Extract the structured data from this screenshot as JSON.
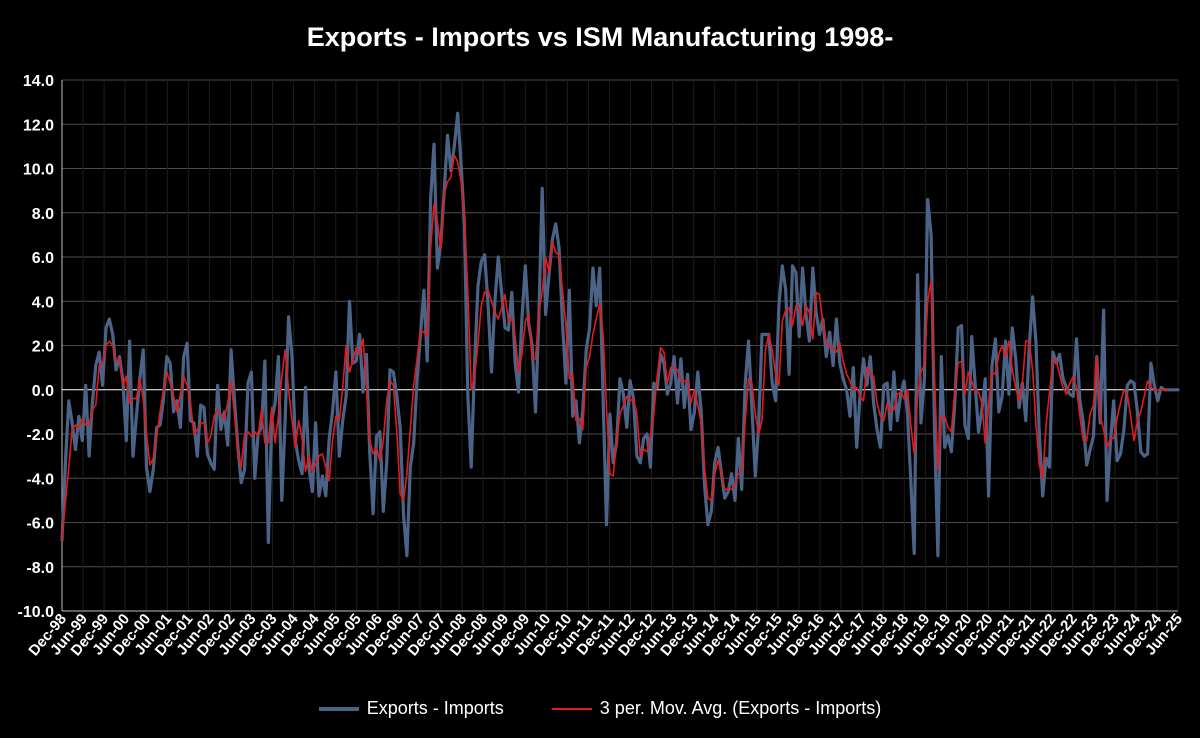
{
  "chart_data": {
    "type": "line",
    "title": "Exports - Imports vs ISM Manufacturing 1998-",
    "xlabel": "",
    "ylabel": "",
    "ylim": [
      -10,
      14
    ],
    "y_ticks": [
      "14.0",
      "12.0",
      "10.0",
      "8.0",
      "6.0",
      "4.0",
      "2.0",
      "0.0",
      "-2.0",
      "-4.0",
      "-6.0",
      "-8.0",
      "-10.0"
    ],
    "x_tick_labels": [
      "Dec-98",
      "Jun-99",
      "Dec-99",
      "Jun-00",
      "Dec-00",
      "Jun-01",
      "Dec-01",
      "Jun-02",
      "Dec-02",
      "Jun-03",
      "Dec-03",
      "Jun-04",
      "Dec-04",
      "Jun-05",
      "Dec-05",
      "Jun-06",
      "Dec-06",
      "Jun-07",
      "Dec-07",
      "Jun-08",
      "Dec-08",
      "Jun-09",
      "Dec-09",
      "Jun-10",
      "Dec-10",
      "Jun-11",
      "Dec-11",
      "Jun-12",
      "Dec-12",
      "Jun-13",
      "Dec-13",
      "Jun-14",
      "Dec-14",
      "Jun-15",
      "Dec-15",
      "Jun-16",
      "Dec-16",
      "Jun-17",
      "Dec-17",
      "Jun-18",
      "Dec-18",
      "Jun-19",
      "Dec-19",
      "Jun-20",
      "Dec-20",
      "Jun-21",
      "Dec-21",
      "Jun-22",
      "Dec-22",
      "Jun-23",
      "Dec-23",
      "Jun-24",
      "Dec-24",
      "Jun-25"
    ],
    "colors": {
      "raw": "#4a6386",
      "avg": "#e41a1c",
      "grid": "#4d4d4d",
      "zero": "#ffffff"
    },
    "series": [
      {
        "name": "Exports - Imports",
        "key": "raw",
        "values": [
          -6.8,
          -3.3,
          -0.5,
          -1.5,
          -2.7,
          -1.2,
          -2.3,
          0.2,
          -3.0,
          -0.6,
          1.1,
          1.7,
          0.2,
          2.8,
          3.2,
          2.5,
          0.9,
          1.5,
          0.4,
          -2.3,
          2.2,
          -3.0,
          -1.2,
          0.5,
          1.8,
          -3.5,
          -4.6,
          -3.6,
          -1.7,
          -1.6,
          -0.4,
          1.5,
          1.2,
          -1.0,
          -0.5,
          -1.7,
          1.5,
          2.1,
          -1.4,
          -1.5,
          -3.0,
          -0.7,
          -0.8,
          -2.9,
          -3.3,
          -3.6,
          0.2,
          -1.8,
          -1.0,
          -2.5,
          1.8,
          -0.5,
          -2.6,
          -4.2,
          -3.6,
          0.3,
          0.8,
          -4.0,
          -2.0,
          -1.7,
          1.3,
          -6.9,
          -1.4,
          -0.6,
          1.5,
          -5.0,
          -1.3,
          3.3,
          1.5,
          -2.3,
          -3.2,
          -3.8,
          0.1,
          -3.5,
          -4.6,
          -1.5,
          -4.8,
          -3.9,
          -4.8,
          -2.2,
          -1.0,
          0.8,
          -3.0,
          -1.4,
          -0.3,
          4.0,
          1.2,
          1.3,
          2.5,
          -0.1,
          1.6,
          -2.8,
          -5.6,
          -2.1,
          -1.9,
          -5.5,
          -3.3,
          0.9,
          0.8,
          -0.3,
          -1.7,
          -5.7,
          -7.5,
          -3.5,
          -2.4,
          0.5,
          2.5,
          4.5,
          1.3,
          8.6,
          11.1,
          5.5,
          6.6,
          8.9,
          11.5,
          9.9,
          11.0,
          12.5,
          10.2,
          7.5,
          -0.2,
          -3.5,
          1.2,
          4.7,
          5.8,
          6.1,
          3.8,
          0.8,
          4.0,
          6.0,
          4.4,
          2.8,
          2.7,
          4.4,
          1.2,
          -0.1,
          3.2,
          5.6,
          3.0,
          2.0,
          -1.0,
          3.2,
          9.1,
          3.4,
          5.2,
          6.8,
          7.5,
          6.4,
          3.0,
          0.3,
          4.5,
          -1.2,
          -0.5,
          -2.4,
          -0.9,
          1.8,
          2.8,
          5.5,
          3.8,
          5.5,
          -0.4,
          -6.1,
          -1.1,
          -3.3,
          -2.4,
          0.5,
          -0.2,
          -1.7,
          0.4,
          -0.4,
          -3.0,
          -3.3,
          -2.2,
          -2.0,
          -3.5,
          0.3,
          0.1,
          1.6,
          1.2,
          -0.2,
          0.3,
          1.5,
          -0.6,
          1.4,
          -0.8,
          0.7,
          -1.8,
          -1.0,
          0.8,
          -1.0,
          -4.3,
          -6.1,
          -5.5,
          -3.3,
          -2.6,
          -3.8,
          -4.9,
          -4.6,
          -3.8,
          -5.0,
          -2.2,
          -4.5,
          0.2,
          2.2,
          -0.8,
          -3.9,
          -1.6,
          2.5,
          2.5,
          2.5,
          0.3,
          -0.5,
          3.8,
          5.6,
          4.5,
          0.7,
          5.6,
          5.3,
          2.4,
          5.5,
          3.4,
          2.2,
          5.5,
          3.5,
          2.5,
          3.2,
          1.5,
          2.6,
          1.1,
          3.2,
          1.2,
          0.5,
          0.0,
          -1.2,
          1.0,
          -2.6,
          -0.2,
          1.4,
          0.2,
          1.5,
          -0.6,
          -1.8,
          -2.6,
          0.2,
          0.3,
          -1.8,
          0.8,
          -1.4,
          -0.2,
          0.4,
          -1.1,
          -4.1,
          -7.4,
          5.2,
          -1.5,
          0.5,
          8.6,
          7.0,
          -1.8,
          -7.5,
          1.5,
          -2.6,
          -2.1,
          -2.8,
          -0.6,
          2.8,
          2.9,
          -1.6,
          -2.2,
          2.4,
          0.3,
          -1.9,
          -0.9,
          0.5,
          -4.8,
          1.1,
          2.3,
          -1.0,
          -0.3,
          2.2,
          -0.2,
          2.8,
          1.4,
          -0.8,
          0.3,
          -1.4,
          1.9,
          4.2,
          2.1,
          -2.0,
          -4.8,
          -3.1,
          -3.5,
          1.7,
          1.2,
          1.6,
          0.5,
          0.1,
          -0.2,
          -0.3,
          2.3,
          -0.5,
          -1.5,
          -3.4,
          -2.7,
          -2.1,
          1.5,
          -1.5,
          3.6,
          -5.0,
          -2.4,
          -0.5,
          -3.2,
          -2.9,
          -1.8,
          0.2,
          0.4,
          0.3,
          -1.0,
          -2.8,
          -3.0,
          -2.9,
          1.2,
          0.2,
          -0.5,
          0.1,
          0.0,
          0.0,
          0.0,
          0.0,
          0.0
        ]
      },
      {
        "name": "3 per. Mov. Avg. (Exports - Imports)",
        "key": "avg",
        "values": [
          -6.8,
          -5.1,
          -3.5,
          -1.8,
          -1.6,
          -1.7,
          -1.3,
          -1.6,
          -1.6,
          -0.9,
          -0.7,
          1.1,
          1.2,
          2.0,
          2.2,
          2.0,
          1.3,
          1.4,
          0.2,
          0.6,
          -0.6,
          -0.4,
          -0.4,
          0.5,
          -0.4,
          -2.0,
          -3.4,
          -3.1,
          -2.1,
          -1.0,
          0.0,
          0.8,
          0.3,
          -0.3,
          -1.0,
          -0.2,
          0.6,
          0.2,
          -0.6,
          -2.0,
          -1.8,
          -1.5,
          -1.5,
          -2.4,
          -2.1,
          -1.2,
          -0.9,
          -1.1,
          -1.3,
          -0.6,
          0.4,
          -1.1,
          -2.8,
          -3.5,
          -2.0,
          -1.9,
          -2.1,
          -1.9,
          -2.1,
          -0.9,
          -2.4,
          -2.4,
          -0.8,
          -2.4,
          -1.2,
          0.6,
          1.8,
          0.0,
          -1.4,
          -2.6,
          -1.4,
          -2.2,
          -3.7,
          -3.0,
          -3.7,
          -3.4,
          -3.0,
          -2.9,
          -3.5,
          -4.1,
          -2.3,
          -1.2,
          -1.4,
          0.1,
          2.0,
          0.8,
          1.3,
          1.9,
          1.6,
          2.3,
          0.2,
          -2.3,
          -2.9,
          -2.6,
          -3.2,
          -2.3,
          -0.5,
          0.4,
          0.2,
          -1.9,
          -4.7,
          -5.0,
          -3.8,
          -1.8,
          0.2,
          1.4,
          2.7,
          2.6,
          2.4,
          6.4,
          8.4,
          7.6,
          6.4,
          8.8,
          9.4,
          9.6,
          10.6,
          10.3,
          9.4,
          7.9,
          4.5,
          0.0,
          0.6,
          2.1,
          3.8,
          4.4,
          4.5,
          4.0,
          3.5,
          3.2,
          3.7,
          4.3,
          3.1,
          3.2,
          2.4,
          0.8,
          1.6,
          3.1,
          3.4,
          1.4,
          1.4,
          3.5,
          4.4,
          6.0,
          5.3,
          6.7,
          6.2,
          6.1,
          4.5,
          2.9,
          0.5,
          0.7,
          -1.4,
          -1.3,
          -1.8,
          1.0,
          1.5,
          2.5,
          3.2,
          3.9,
          2.5,
          -0.8,
          -3.8,
          -3.9,
          -2.3,
          -1.1,
          -0.7,
          -0.3,
          -0.5,
          -0.4,
          -1.1,
          -3.0,
          -2.7,
          -2.8,
          -2.1,
          -1.1,
          0.6,
          1.9,
          1.7,
          0.3,
          1.0,
          1.0,
          0.9,
          0.4,
          0.4,
          0.4,
          -0.6,
          0.0,
          -0.7,
          -1.5,
          -3.5,
          -4.9,
          -5.0,
          -3.8,
          -3.2,
          -3.8,
          -4.5,
          -4.5,
          -4.5,
          -4.3,
          -3.8,
          -3.7,
          -1.5,
          0.5,
          0.3,
          -1.1,
          -2.0,
          -1.4,
          1.8,
          2.5,
          1.8,
          0.7,
          0.2,
          3.1,
          3.6,
          3.7,
          2.9,
          3.8,
          3.7,
          2.9,
          3.8,
          3.5,
          2.3,
          4.4,
          4.3,
          3.0,
          2.2,
          1.9,
          1.9,
          1.7,
          2.1,
          1.3,
          0.7,
          0.4,
          0.0,
          0.1,
          -0.3,
          -0.5,
          1.0,
          0.8,
          0.6,
          -0.6,
          -1.2,
          -1.4,
          -0.6,
          -1.0,
          -0.9,
          -0.2,
          -0.1,
          -0.4,
          0.0,
          -1.6,
          -2.9,
          -0.2,
          0.8,
          1.1,
          4.0,
          4.9,
          0.6,
          -3.6,
          -1.2,
          -1.2,
          -1.7,
          -1.9,
          0.0,
          1.2,
          1.3,
          -0.2,
          0.8,
          0.4,
          -0.1,
          -0.1,
          -0.6,
          -2.4,
          -0.7,
          0.8,
          0.7,
          1.6,
          2.0,
          1.5,
          2.2,
          0.9,
          0.1,
          -0.5,
          0.3,
          2.2,
          2.2,
          0.9,
          -1.6,
          -3.4,
          -4.0,
          -1.6,
          -0.1,
          1.4,
          1.3,
          0.7,
          0.1,
          -0.2,
          0.3,
          0.6,
          0.1,
          -1.2,
          -2.3,
          -2.3,
          -1.1,
          -0.7,
          1.5,
          -1.2,
          -1.8,
          -2.6,
          -2.2,
          -2.2,
          -1.3,
          -0.6,
          0.0,
          -0.2,
          -1.2,
          -2.3,
          -1.4,
          -1.0,
          -0.3,
          0.4,
          0.1,
          0.0,
          0.0,
          0.0,
          0.0,
          0.0
        ]
      }
    ],
    "legend": {
      "position": "bottom",
      "entries": [
        "Exports - Imports",
        "3 per. Mov. Avg. (Exports - Imports)"
      ]
    }
  }
}
